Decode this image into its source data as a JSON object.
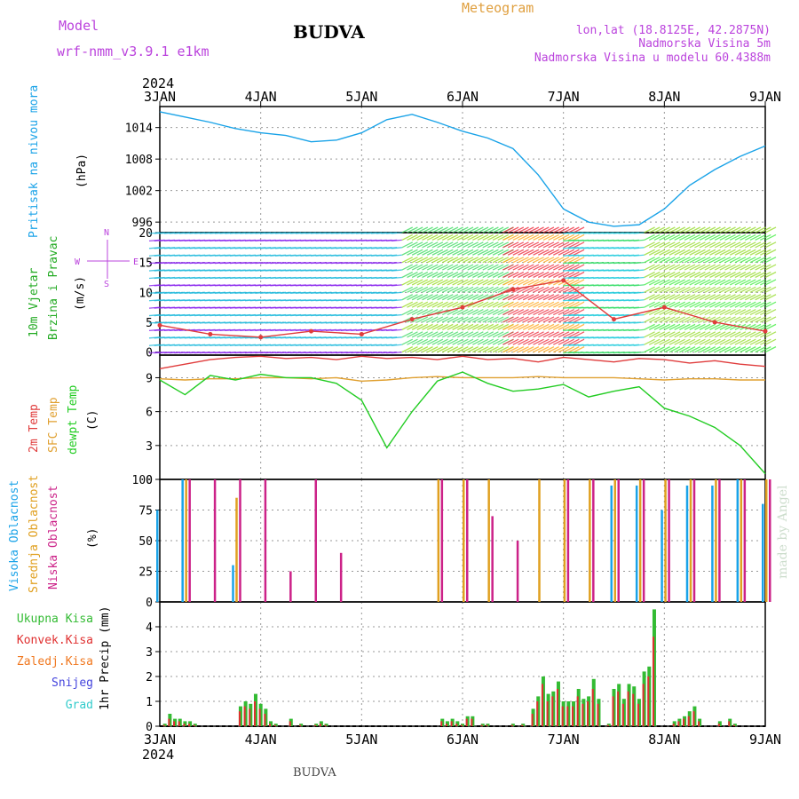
{
  "header": {
    "model_label": "Model",
    "model_name": "wrf-nmm_v3.9.1  e1km",
    "station": "BUDVA",
    "meteogram": "Meteogram",
    "lonlat": "lon,lat (18.8125E, 42.2875N)",
    "elevation": "Nadmorska Visina 5m",
    "model_elevation": "Nadmorska Visina u modelu 60.4388m",
    "year": "2024",
    "footer_station": "BUDVA",
    "credit": "made by Angel"
  },
  "colors": {
    "pressure": "#1aa3e8",
    "temp2m": "#e03c3c",
    "sfc_temp": "#e0a030",
    "dewpt": "#22cc22",
    "high_cloud": "#1aa3e8",
    "mid_cloud": "#e0a020",
    "low_cloud": "#cc2288",
    "total_precip": "#33bb33",
    "convective": "#e03030",
    "frozen": "#f07820",
    "snow": "#4444dd",
    "graupel": "#33cccc",
    "title": "#bb44dd",
    "meteogram": "#e0a040"
  },
  "x_axis": {
    "ticks": [
      "3JAN",
      "4JAN",
      "5JAN",
      "6JAN",
      "7JAN",
      "8JAN",
      "9JAN"
    ]
  },
  "chart_data": [
    {
      "type": "line",
      "name": "pressure",
      "ylabel": [
        "Pritisak na nivou mora",
        "(hPa)"
      ],
      "ylim": [
        994,
        1018
      ],
      "yticks": [
        996,
        1002,
        1008,
        1014
      ],
      "x": [
        0,
        0.25,
        0.5,
        0.75,
        1.0,
        1.25,
        1.5,
        1.75,
        2.0,
        2.25,
        2.5,
        2.75,
        3.0,
        3.25,
        3.5,
        3.75,
        4.0,
        4.25,
        4.5,
        4.75,
        5.0,
        5.25,
        5.5,
        5.75,
        6.0
      ],
      "series": [
        {
          "values": [
            1017.0,
            1016.0,
            1015.0,
            1013.8,
            1013.0,
            1012.5,
            1011.3,
            1011.6,
            1013.0,
            1015.5,
            1016.5,
            1015.0,
            1013.3,
            1012.0,
            1010.0,
            1005.0,
            998.5,
            996.0,
            995.2,
            995.5,
            998.5,
            1003.0,
            1006.0,
            1008.5,
            1010.5
          ]
        }
      ],
      "grid": true
    },
    {
      "type": "scatter",
      "name": "wind",
      "ylabel": [
        "10m Vjetar",
        "Brzina i Pravac",
        "(m/s)"
      ],
      "ylim": [
        -0.5,
        20
      ],
      "yticks": [
        0,
        5,
        10,
        15,
        20
      ],
      "compass": [
        "N",
        "W",
        "E",
        "S"
      ],
      "x": [
        0,
        0.5,
        1.0,
        1.5,
        2.0,
        2.5,
        3.0,
        3.5,
        4.0,
        4.5,
        5.0,
        5.5,
        6.0
      ],
      "series": [
        {
          "values": [
            4.5,
            3.0,
            2.5,
            3.5,
            3.0,
            5.5,
            7.5,
            10.5,
            12.0,
            5.5,
            7.5,
            5.0,
            3.5
          ]
        }
      ],
      "grid": true
    },
    {
      "type": "line",
      "name": "temperature",
      "ylabel": [
        "2m Temp",
        "SFC Temp",
        "dewpt Temp",
        "(C)"
      ],
      "ylim": [
        0,
        11
      ],
      "yticks": [
        0,
        3,
        6,
        9
      ],
      "x": [
        0,
        0.25,
        0.5,
        0.75,
        1.0,
        1.25,
        1.5,
        1.75,
        2.0,
        2.25,
        2.5,
        2.75,
        3.0,
        3.25,
        3.5,
        3.75,
        4.0,
        4.25,
        4.5,
        4.75,
        5.0,
        5.25,
        5.5,
        5.75,
        6.0
      ],
      "series": [
        {
          "name": "2m Temp",
          "values": [
            9.8,
            10.2,
            10.6,
            10.8,
            10.9,
            10.7,
            10.8,
            10.6,
            10.9,
            10.7,
            10.8,
            10.6,
            10.9,
            10.6,
            10.7,
            10.4,
            10.8,
            10.6,
            10.4,
            10.7,
            10.6,
            10.3,
            10.5,
            10.2,
            10.0
          ]
        },
        {
          "name": "SFC Temp",
          "values": [
            8.9,
            8.8,
            8.9,
            8.9,
            9.0,
            9.0,
            8.9,
            9.0,
            8.7,
            8.8,
            9.0,
            9.1,
            9.0,
            9.0,
            9.0,
            9.1,
            9.0,
            9.0,
            9.0,
            8.9,
            8.8,
            8.9,
            8.9,
            8.8,
            8.8
          ]
        },
        {
          "name": "dewpt Temp",
          "values": [
            8.8,
            7.5,
            9.2,
            8.8,
            9.3,
            9.0,
            9.0,
            8.5,
            7.0,
            2.8,
            6.0,
            8.7,
            9.5,
            8.5,
            7.8,
            8.0,
            8.4,
            7.3,
            7.8,
            8.2,
            6.3,
            5.6,
            4.6,
            3.0,
            0.5
          ]
        }
      ],
      "grid": true
    },
    {
      "type": "bar",
      "name": "clouds",
      "ylabel": [
        "Visoka Oblacnost",
        "Srednja Oblacnost",
        "Niska Oblacnost",
        "(%)"
      ],
      "ylim": [
        0,
        100
      ],
      "yticks": [
        0,
        25,
        50,
        75,
        100
      ],
      "x": [
        0,
        0.25,
        0.5,
        0.75,
        1.0,
        1.25,
        1.5,
        1.75,
        2.0,
        2.25,
        2.5,
        2.75,
        3.0,
        3.25,
        3.5,
        3.75,
        4.0,
        4.25,
        4.5,
        4.75,
        5.0,
        5.25,
        5.5,
        5.75,
        6.0
      ],
      "series": [
        {
          "name": "Visoka Oblacnost",
          "values": [
            75,
            100,
            0,
            30,
            0,
            0,
            0,
            0,
            0,
            0,
            0,
            0,
            0,
            0,
            0,
            0,
            0,
            0,
            95,
            95,
            75,
            95,
            95,
            100,
            80
          ]
        },
        {
          "name": "Srednja Oblacnost",
          "values": [
            0,
            100,
            0,
            85,
            0,
            0,
            0,
            0,
            0,
            0,
            0,
            100,
            100,
            100,
            0,
            100,
            100,
            100,
            100,
            100,
            100,
            100,
            100,
            100,
            100
          ]
        },
        {
          "name": "Niska Oblacnost",
          "values": [
            0,
            100,
            100,
            100,
            100,
            25,
            100,
            40,
            0,
            0,
            0,
            100,
            100,
            70,
            50,
            0,
            100,
            100,
            100,
            100,
            100,
            100,
            100,
            100,
            100
          ]
        }
      ],
      "grid": true
    },
    {
      "type": "bar",
      "name": "precipitation",
      "ylabel": [
        "Ukupna Kisa",
        "Konvek.Kisa",
        "Zaledj.Kisa",
        "Snijeg",
        "Grad",
        "1hr Precip (mm)"
      ],
      "ylim": [
        0,
        5
      ],
      "yticks": [
        0,
        1,
        2,
        3,
        4
      ],
      "x": [
        0.05,
        0.1,
        0.15,
        0.2,
        0.25,
        0.3,
        0.35,
        0.8,
        0.85,
        0.9,
        0.95,
        1.0,
        1.05,
        1.1,
        1.15,
        1.3,
        1.4,
        1.55,
        1.6,
        1.65,
        2.8,
        2.85,
        2.9,
        2.95,
        3.0,
        3.05,
        3.1,
        3.2,
        3.25,
        3.5,
        3.6,
        3.7,
        3.75,
        3.8,
        3.85,
        3.9,
        3.95,
        4.0,
        4.05,
        4.1,
        4.15,
        4.2,
        4.25,
        4.3,
        4.35,
        4.45,
        4.5,
        4.55,
        4.6,
        4.65,
        4.7,
        4.75,
        4.8,
        4.85,
        4.9,
        5.1,
        5.15,
        5.2,
        5.25,
        5.3,
        5.35,
        5.55,
        5.65,
        5.7
      ],
      "series": [
        {
          "name": "Ukupna Kisa",
          "values": [
            0.1,
            0.5,
            0.3,
            0.3,
            0.2,
            0.2,
            0.1,
            0.8,
            1.0,
            0.9,
            1.3,
            0.9,
            0.7,
            0.2,
            0.1,
            0.3,
            0.1,
            0.1,
            0.2,
            0.1,
            0.3,
            0.2,
            0.3,
            0.2,
            0.1,
            0.4,
            0.4,
            0.1,
            0.1,
            0.1,
            0.1,
            0.7,
            1.2,
            2.0,
            1.3,
            1.4,
            1.8,
            1.0,
            1.0,
            1.0,
            1.5,
            1.1,
            1.2,
            1.9,
            1.1,
            0.1,
            1.5,
            1.7,
            1.1,
            1.7,
            1.6,
            1.1,
            2.2,
            2.4,
            4.7,
            0.2,
            0.3,
            0.4,
            0.6,
            0.8,
            0.3,
            0.2,
            0.3,
            0.1
          ]
        },
        {
          "name": "Konvek.Kisa",
          "values": [
            0.05,
            0.3,
            0.2,
            0.2,
            0.1,
            0.1,
            0.05,
            0.6,
            0.8,
            0.7,
            1.0,
            0.7,
            0.5,
            0.1,
            0.05,
            0.2,
            0.05,
            0.05,
            0.1,
            0.05,
            0.2,
            0.1,
            0.2,
            0.1,
            0.05,
            0.3,
            0.3,
            0.05,
            0.05,
            0.05,
            0.05,
            0.5,
            1.0,
            1.7,
            1.0,
            1.2,
            1.5,
            0.8,
            0.8,
            0.8,
            1.2,
            0.9,
            1.0,
            1.5,
            0.9,
            0.05,
            1.2,
            1.4,
            0.9,
            1.4,
            1.3,
            0.9,
            1.7,
            2.0,
            3.6,
            0.1,
            0.2,
            0.3,
            0.4,
            0.6,
            0.2,
            0.1,
            0.2,
            0.05
          ]
        }
      ],
      "grid": true
    }
  ]
}
